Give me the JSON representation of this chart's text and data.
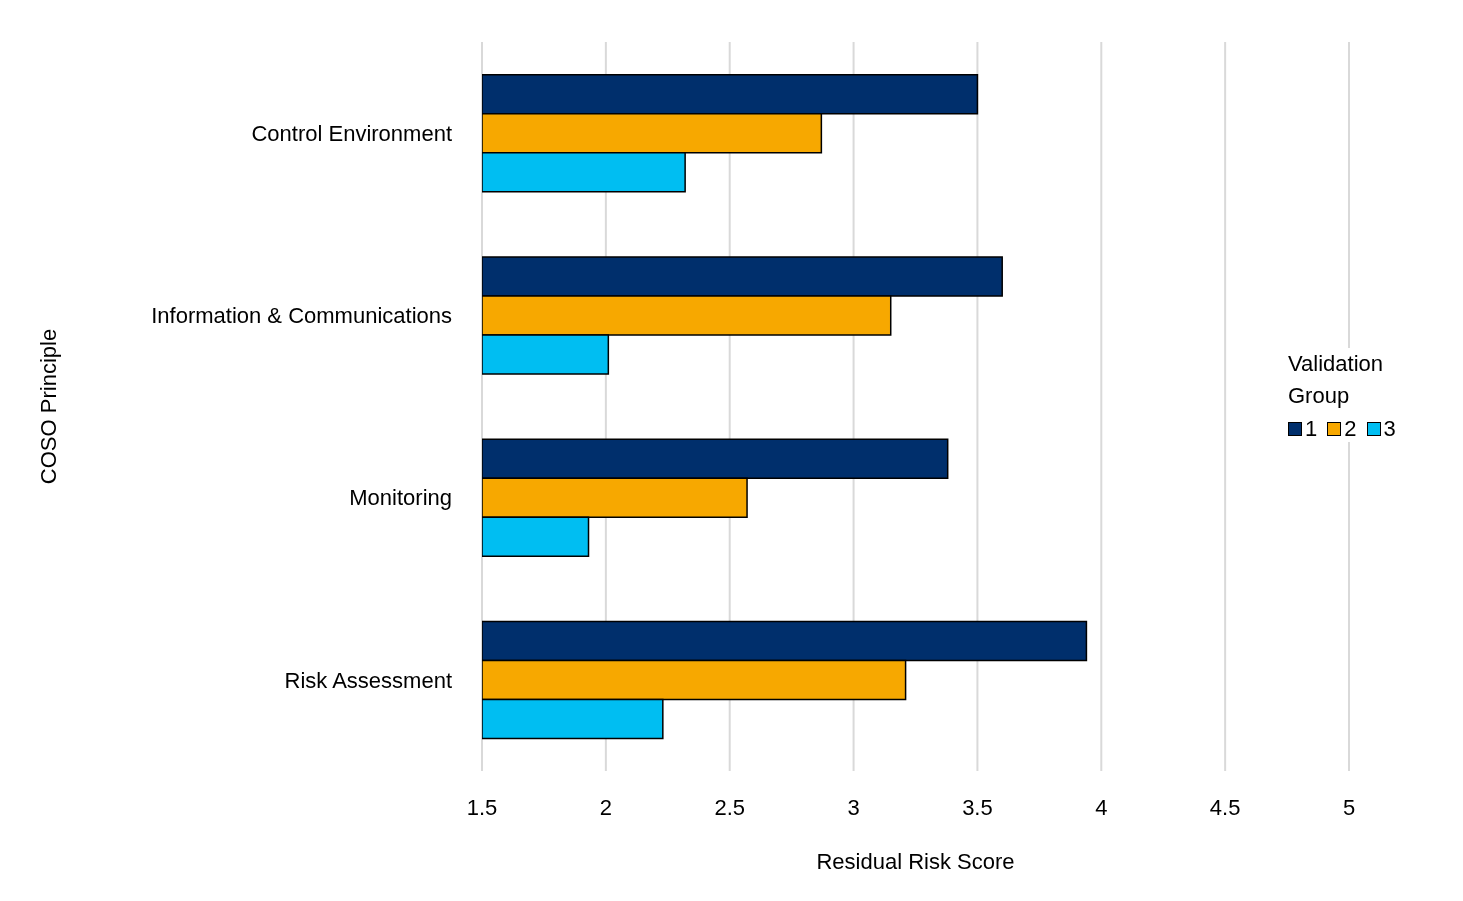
{
  "chart_data": {
    "type": "bar",
    "orientation": "horizontal",
    "xlabel": "Residual Risk Score",
    "ylabel": "COSO Principle",
    "legend_title": "Validation Group",
    "legend": "right",
    "grid": "x",
    "categories": [
      "Control Environment",
      "Information & Communications",
      "Monitoring",
      "Risk Assessment"
    ],
    "xlim": [
      1.5,
      5
    ],
    "xticks": [
      1.5,
      2,
      2.5,
      3,
      3.5,
      4,
      4.5,
      5
    ],
    "series": [
      {
        "name": "1",
        "color": "#002f6c",
        "values": [
          3.5,
          3.6,
          3.38,
          3.94
        ]
      },
      {
        "name": "2",
        "color": "#f7a800",
        "values": [
          2.87,
          3.15,
          2.57,
          3.21
        ]
      },
      {
        "name": "3",
        "color": "#00bef2",
        "values": [
          2.32,
          2.01,
          1.93,
          2.23
        ]
      }
    ]
  }
}
